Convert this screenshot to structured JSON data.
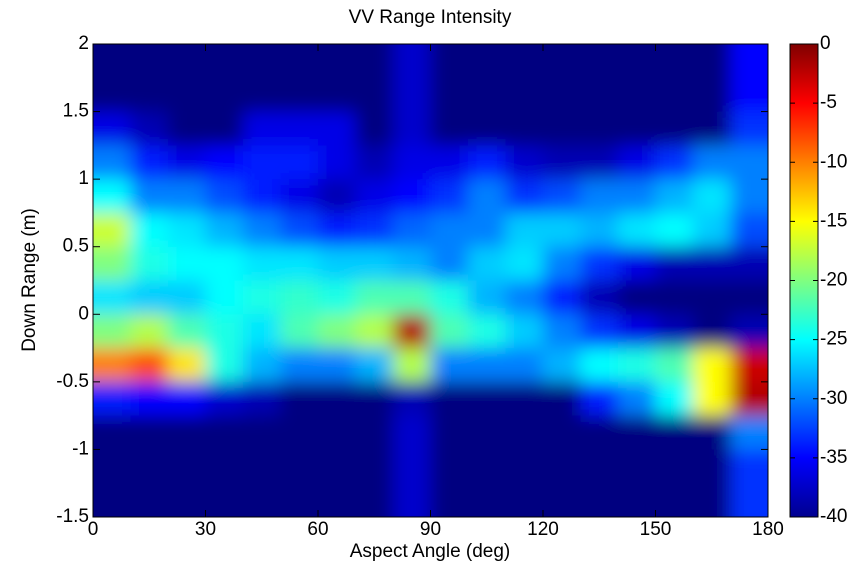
{
  "chart_data": {
    "type": "heatmap",
    "title": "VV Range Intensity",
    "xlabel": "Aspect Angle (deg)",
    "ylabel": "Down Range (m)",
    "xlim": [
      0,
      180
    ],
    "xticks": [
      0,
      30,
      60,
      90,
      120,
      150,
      180
    ],
    "ylim": [
      -1.5,
      2
    ],
    "yticks": [
      -1.5,
      -1,
      -0.5,
      0,
      0.5,
      1,
      1.5,
      2
    ],
    "clim": [
      -40,
      0
    ],
    "cticks": [
      -40,
      -35,
      -30,
      -25,
      -20,
      -15,
      -10,
      -5,
      0
    ],
    "colormap": "jet",
    "x": [
      5,
      15,
      25,
      35,
      45,
      55,
      65,
      75,
      85,
      95,
      105,
      115,
      125,
      135,
      145,
      155,
      165,
      175
    ],
    "y": [
      1.875,
      1.625,
      1.375,
      1.125,
      0.875,
      0.625,
      0.375,
      0.125,
      -0.125,
      -0.375,
      -0.625,
      -0.875,
      -1.125,
      -1.375
    ],
    "z": [
      [
        -40,
        -40,
        -40,
        -40,
        -40,
        -40,
        -40,
        -40,
        -37,
        -40,
        -40,
        -40,
        -40,
        -40,
        -40,
        -40,
        -40,
        -35
      ],
      [
        -40,
        -40,
        -40,
        -40,
        -40,
        -40,
        -40,
        -40,
        -37,
        -40,
        -40,
        -40,
        -40,
        -40,
        -40,
        -40,
        -40,
        -35
      ],
      [
        -36,
        -38,
        -40,
        -40,
        -36,
        -36,
        -36,
        -40,
        -37,
        -40,
        -40,
        -40,
        -40,
        -40,
        -40,
        -40,
        -40,
        -33
      ],
      [
        -30,
        -34,
        -36,
        -35,
        -34,
        -34,
        -36,
        -38,
        -36,
        -36,
        -34,
        -37,
        -38,
        -38,
        -36,
        -33,
        -30,
        -30
      ],
      [
        -25,
        -30,
        -30,
        -32,
        -34,
        -36,
        -38,
        -36,
        -35,
        -33,
        -30,
        -33,
        -32,
        -30,
        -30,
        -28,
        -26,
        -30
      ],
      [
        -17,
        -25,
        -26,
        -28,
        -30,
        -32,
        -34,
        -33,
        -31,
        -30,
        -30,
        -27,
        -27,
        -28,
        -26,
        -25,
        -27,
        -32
      ],
      [
        -20,
        -24,
        -25,
        -25,
        -26,
        -26,
        -27,
        -27,
        -28,
        -30,
        -27,
        -26,
        -30,
        -33,
        -36,
        -38,
        -38,
        -38
      ],
      [
        -26,
        -27,
        -27,
        -25,
        -24,
        -23,
        -24,
        -22,
        -22,
        -24,
        -28,
        -30,
        -34,
        -38,
        -40,
        -40,
        -40,
        -40
      ],
      [
        -20,
        -18,
        -22,
        -24,
        -26,
        -22,
        -20,
        -18,
        -2,
        -22,
        -24,
        -27,
        -30,
        -33,
        -36,
        -38,
        -40,
        -38
      ],
      [
        -10,
        -8,
        -14,
        -24,
        -28,
        -30,
        -30,
        -28,
        -18,
        -30,
        -30,
        -30,
        -28,
        -25,
        -24,
        -22,
        -15,
        -3
      ],
      [
        -34,
        -35,
        -35,
        -37,
        -38,
        -40,
        -40,
        -40,
        -38,
        -40,
        -40,
        -40,
        -40,
        -34,
        -30,
        -25,
        -15,
        -2
      ],
      [
        -40,
        -40,
        -40,
        -40,
        -40,
        -40,
        -40,
        -40,
        -37,
        -40,
        -40,
        -40,
        -40,
        -40,
        -40,
        -40,
        -40,
        -30
      ],
      [
        -40,
        -40,
        -40,
        -40,
        -40,
        -40,
        -40,
        -40,
        -37,
        -40,
        -40,
        -40,
        -40,
        -40,
        -40,
        -40,
        -40,
        -33
      ],
      [
        -40,
        -40,
        -40,
        -40,
        -40,
        -40,
        -40,
        -40,
        -37,
        -40,
        -40,
        -40,
        -40,
        -40,
        -40,
        -40,
        -40,
        -33
      ]
    ]
  }
}
